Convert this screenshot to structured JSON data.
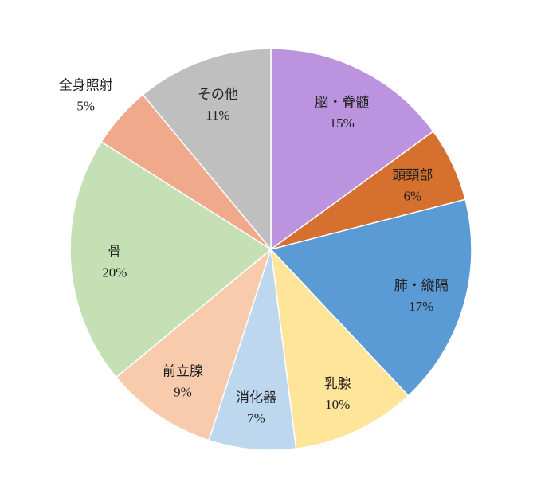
{
  "chart_data": {
    "type": "pie",
    "title": "",
    "slices": [
      {
        "label": "脳・脊髄",
        "value": 15,
        "value_label": "15%",
        "color": "#BB93DF"
      },
      {
        "label": "頭頸部",
        "value": 6,
        "value_label": "6%",
        "color": "#D5702E"
      },
      {
        "label": "肺・縦隔",
        "value": 17,
        "value_label": "17%",
        "color": "#5B9BD5"
      },
      {
        "label": "乳腺",
        "value": 10,
        "value_label": "10%",
        "color": "#FFE599"
      },
      {
        "label": "消化器",
        "value": 7,
        "value_label": "7%",
        "color": "#BDD7EE"
      },
      {
        "label": "前立腺",
        "value": 9,
        "value_label": "9%",
        "color": "#F8CBAD"
      },
      {
        "label": "骨",
        "value": 20,
        "value_label": "20%",
        "color": "#C5E0B4"
      },
      {
        "label": "全身照射",
        "value": 5,
        "value_label": "5%",
        "color": "#F0A98A"
      },
      {
        "label": "その他",
        "value": 11,
        "value_label": "11%",
        "color": "#BFBFBF"
      }
    ],
    "start": "12 o'clock",
    "direction": "clockwise",
    "legend": "none"
  }
}
